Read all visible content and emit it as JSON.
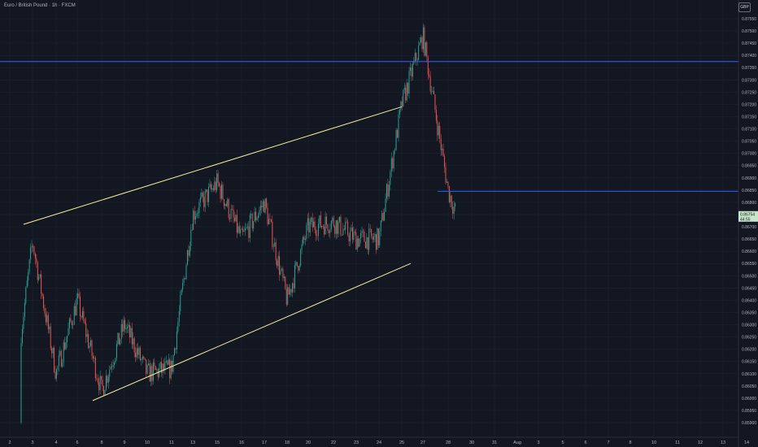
{
  "symbol_title": "Euro / British Pound · 1h · FXCM",
  "currency_button": "GBP",
  "colors": {
    "background": "#131722",
    "grid": "#1e222d",
    "axis_text": "#b2b5be",
    "trend_line": "#f5f09a",
    "horizontal_line": "#2962ff",
    "candle_up": "#26a69a",
    "candle_down": "#ef5350",
    "price_label_bg": "#c8e6c9"
  },
  "chart_data": {
    "type": "candlestick",
    "xlabel": "",
    "ylabel": "",
    "ylim": [
      0.8588,
      0.8759
    ],
    "x_ticks": [
      "2",
      "3",
      "4",
      "6",
      "8",
      "9",
      "10",
      "11",
      "13",
      "15",
      "16",
      "17",
      "18",
      "20",
      "22",
      "23",
      "24",
      "25",
      "27",
      "28",
      "30",
      "31",
      "Aug",
      "3",
      "5",
      "6",
      "7",
      "8",
      "10",
      "11",
      "12",
      "13",
      "14"
    ],
    "y_ticks": [
      "0.87550",
      "0.87500",
      "0.87450",
      "0.87400",
      "0.87350",
      "0.87300",
      "0.87250",
      "0.87200",
      "0.87150",
      "0.87100",
      "0.87050",
      "0.87000",
      "0.86950",
      "0.86900",
      "0.86850",
      "0.86800",
      "0.86750",
      "0.86700",
      "0.86650",
      "0.86600",
      "0.86550",
      "0.86500",
      "0.86450",
      "0.86400",
      "0.86350",
      "0.86300",
      "0.86250",
      "0.86200",
      "0.86150",
      "0.86100",
      "0.86050",
      "0.86000",
      "0.85950",
      "0.85900"
    ],
    "price_path": [
      [
        "2",
        0.859
      ],
      [
        "3",
        0.8664
      ],
      [
        "4",
        0.861
      ],
      [
        "6",
        0.864
      ],
      [
        "8",
        0.8603
      ],
      [
        "9",
        0.863
      ],
      [
        "10",
        0.861
      ],
      [
        "11",
        0.8612
      ],
      [
        "13",
        0.8675
      ],
      [
        "15",
        0.8688
      ],
      [
        "16",
        0.8665
      ],
      [
        "17",
        0.868
      ],
      [
        "18",
        0.864
      ],
      [
        "20",
        0.867
      ],
      [
        "22",
        0.8672
      ],
      [
        "23",
        0.8665
      ],
      [
        "24",
        0.8665
      ],
      [
        "25",
        0.872
      ],
      [
        "27",
        0.8748
      ],
      [
        "28",
        0.8685
      ],
      [
        "29",
        0.8676
      ]
    ],
    "current_price": "0.86754",
    "current_price_sub": "44:55",
    "annotations": {
      "upper_trend_line": [
        [
          "2",
          0.8671
        ],
        [
          "25",
          0.8719
        ]
      ],
      "lower_trend_line": [
        [
          "8",
          0.8599
        ],
        [
          "25",
          0.8655
        ]
      ],
      "horizontal_lines": [
        0.87375,
        0.86845
      ]
    }
  }
}
